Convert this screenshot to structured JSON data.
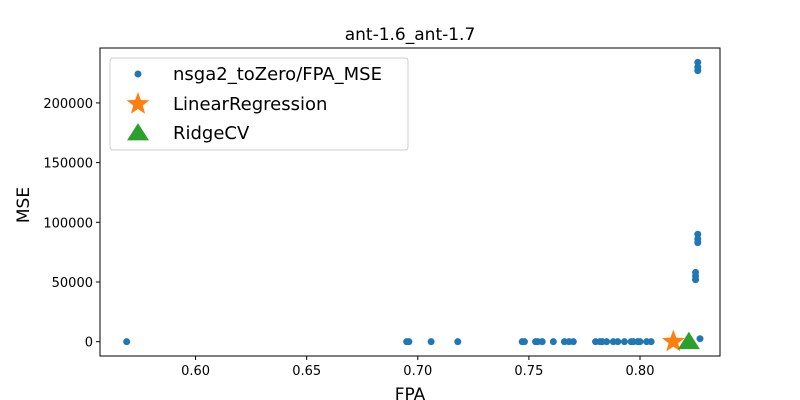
{
  "chart_data": {
    "type": "scatter",
    "title": "ant-1.6_ant-1.7",
    "xlabel": "FPA",
    "ylabel": "MSE",
    "xlim": [
      0.557,
      0.836
    ],
    "ylim": [
      -12000,
      246000
    ],
    "xticks": [
      0.6,
      0.65,
      0.7,
      0.75,
      0.8
    ],
    "xtick_labels": [
      "0.60",
      "0.65",
      "0.70",
      "0.75",
      "0.80"
    ],
    "yticks": [
      0,
      50000,
      100000,
      150000,
      200000
    ],
    "ytick_labels": [
      "0",
      "50000",
      "100000",
      "150000",
      "200000"
    ],
    "grid": false,
    "legend_position": "top-left",
    "series": [
      {
        "name": "nsga2_toZero/FPA_MSE",
        "marker": "circle",
        "color": "#1f77b4",
        "points": [
          [
            0.569,
            0
          ],
          [
            0.695,
            0
          ],
          [
            0.696,
            0
          ],
          [
            0.706,
            0
          ],
          [
            0.718,
            0
          ],
          [
            0.747,
            0
          ],
          [
            0.748,
            0
          ],
          [
            0.753,
            0
          ],
          [
            0.754,
            0
          ],
          [
            0.756,
            0
          ],
          [
            0.761,
            0
          ],
          [
            0.766,
            0
          ],
          [
            0.768,
            0
          ],
          [
            0.77,
            0
          ],
          [
            0.78,
            0
          ],
          [
            0.782,
            0
          ],
          [
            0.783,
            0
          ],
          [
            0.785,
            0
          ],
          [
            0.788,
            0
          ],
          [
            0.79,
            0
          ],
          [
            0.793,
            0
          ],
          [
            0.796,
            0
          ],
          [
            0.797,
            0
          ],
          [
            0.799,
            0
          ],
          [
            0.8,
            0
          ],
          [
            0.803,
            0
          ],
          [
            0.805,
            0
          ],
          [
            0.825,
            52000
          ],
          [
            0.825,
            55000
          ],
          [
            0.825,
            58000
          ],
          [
            0.826,
            83000
          ],
          [
            0.826,
            86000
          ],
          [
            0.826,
            90000
          ],
          [
            0.826,
            227000
          ],
          [
            0.826,
            230000
          ],
          [
            0.826,
            234000
          ],
          [
            0.827,
            2500
          ]
        ]
      },
      {
        "name": "LinearRegression",
        "marker": "star",
        "color": "#ff7f0e",
        "points": [
          [
            0.815,
            0
          ]
        ]
      },
      {
        "name": "RidgeCV",
        "marker": "triangle",
        "color": "#2ca02c",
        "points": [
          [
            0.822,
            0
          ]
        ]
      }
    ]
  }
}
